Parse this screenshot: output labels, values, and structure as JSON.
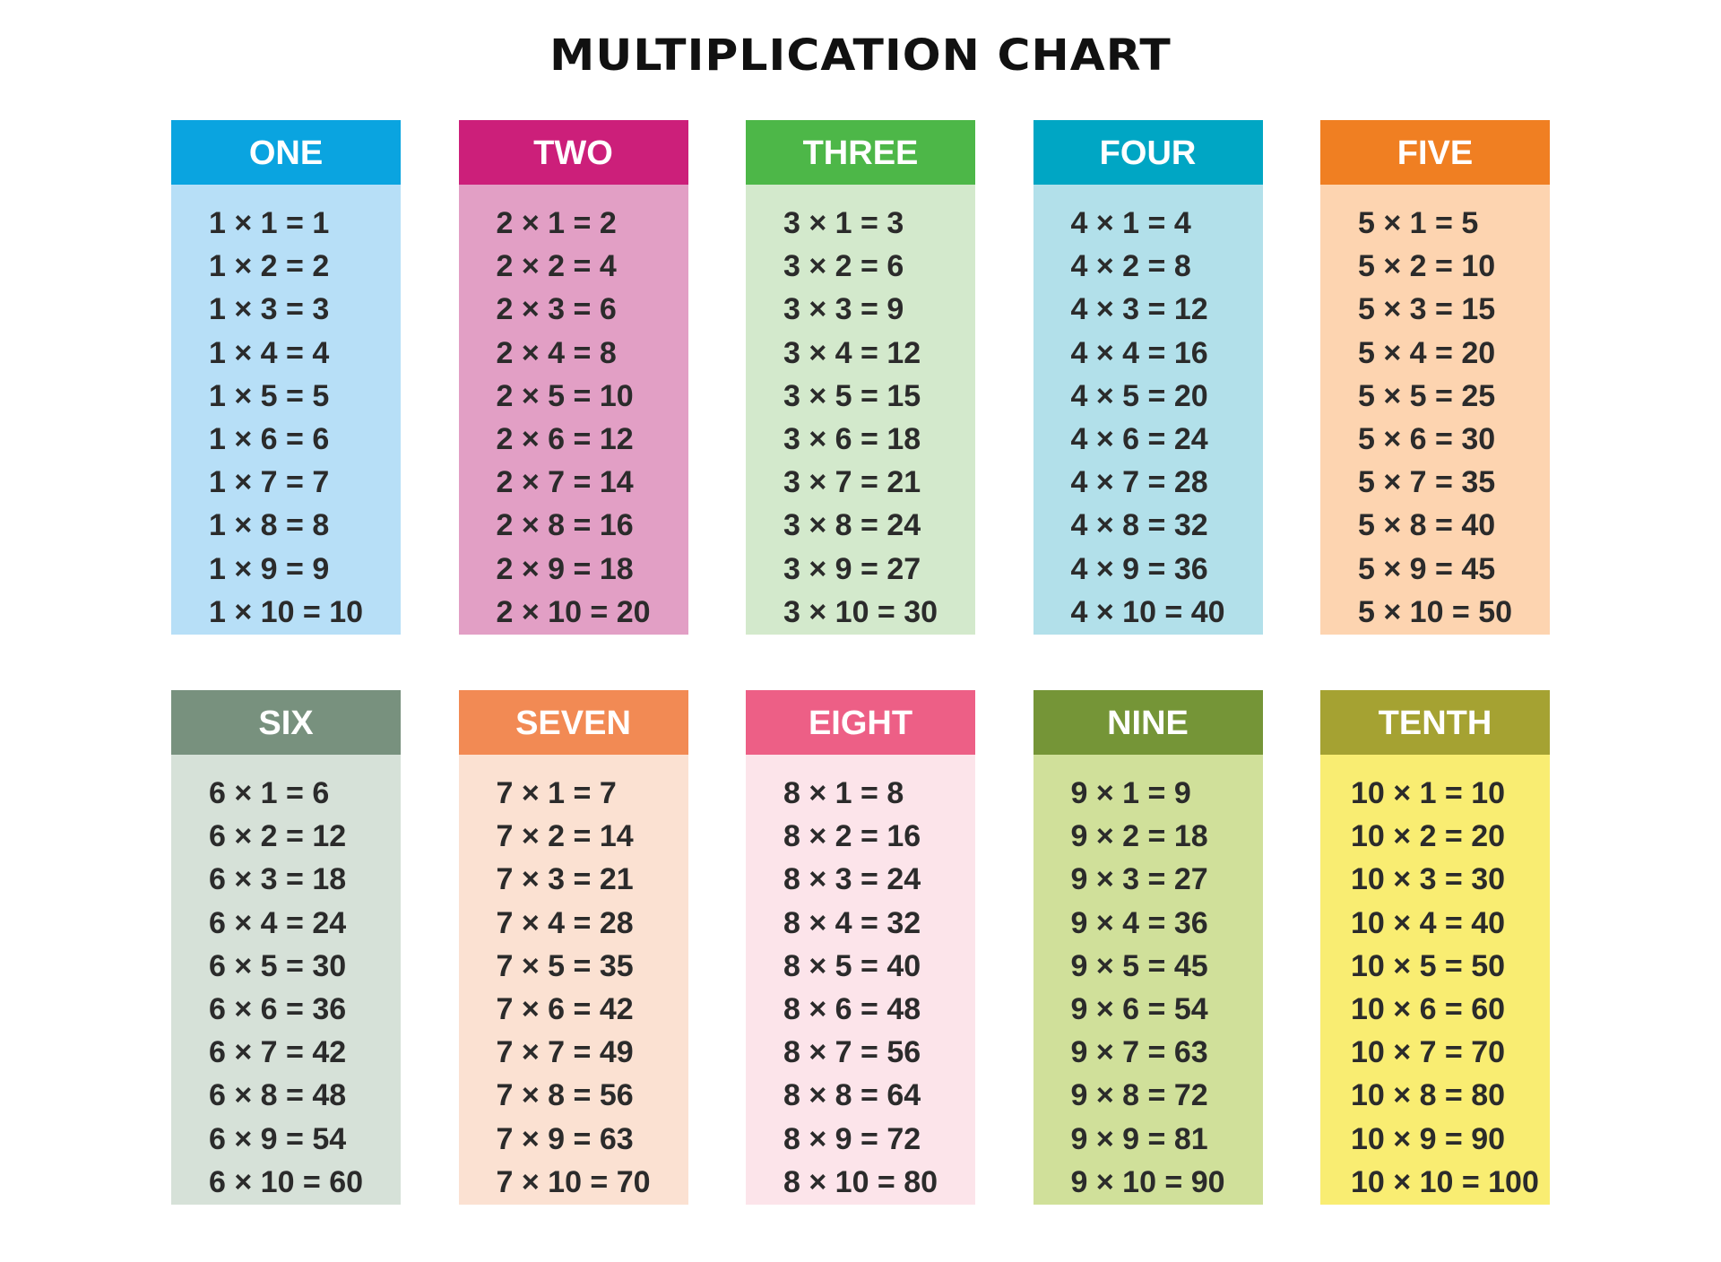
{
  "title": "MULTIPLICATION CHART",
  "tables": [
    {
      "header": "ONE",
      "header_color": "#0aa4e0",
      "body_color": "#b7dff7",
      "rows": [
        "1 × 1 = 1",
        "1 × 2 = 2",
        "1 × 3 = 3",
        "1 × 4 = 4",
        "1 × 5 = 5",
        "1 × 6 = 6",
        "1 × 7 = 7",
        "1 × 8 = 8",
        "1 × 9 = 9",
        "1 × 10 = 10"
      ]
    },
    {
      "header": "TWO",
      "header_color": "#cc1f7a",
      "body_color": "#e29fc5",
      "rows": [
        "2 × 1 = 2",
        "2 × 2 = 4",
        "2 × 3 = 6",
        "2 × 4 = 8",
        "2 × 5 = 10",
        "2 × 6 = 12",
        "2 × 7 = 14",
        "2 × 8 = 16",
        "2 × 9 = 18",
        "2 × 10 = 20"
      ]
    },
    {
      "header": "THREE",
      "header_color": "#4db748",
      "body_color": "#d3e9cc",
      "rows": [
        "3 × 1 = 3",
        "3 × 2 = 6",
        "3 × 3 = 9",
        "3 × 4 = 12",
        "3 × 5 = 15",
        "3 × 6 = 18",
        "3 × 7 = 21",
        "3 × 8 = 24",
        "3 × 9 = 27",
        "3 × 10 = 30"
      ]
    },
    {
      "header": "FOUR",
      "header_color": "#00a6c4",
      "body_color": "#b2e0ea",
      "rows": [
        "4 × 1 = 4",
        "4 × 2 = 8",
        "4 × 3 = 12",
        "4 × 4 = 16",
        "4 × 5 = 20",
        "4 × 6 = 24",
        "4 × 7 = 28",
        "4 × 8 = 32",
        "4 × 9 = 36",
        "4 × 10 = 40"
      ]
    },
    {
      "header": "FIVE",
      "header_color": "#f07f22",
      "body_color": "#fdd4b0",
      "rows": [
        "5 × 1 = 5",
        "5 × 2 = 10",
        "5 × 3 = 15",
        "5 × 4 = 20",
        "5 × 5 = 25",
        "5 × 6 = 30",
        "5 × 7 = 35",
        "5 × 8 = 40",
        "5 × 9 = 45",
        "5 × 10 = 50"
      ]
    },
    {
      "header": "SIX",
      "header_color": "#78917e",
      "body_color": "#d6e1d8",
      "rows": [
        "6 × 1 = 6",
        "6 × 2 = 12",
        "6 × 3 = 18",
        "6 × 4 = 24",
        "6 × 5 = 30",
        "6 × 6 = 36",
        "6 × 7 = 42",
        "6 × 8 = 48",
        "6 × 9 = 54",
        "6 × 10 = 60"
      ]
    },
    {
      "header": "SEVEN",
      "header_color": "#f28a54",
      "body_color": "#fbe1d2",
      "rows": [
        "7 × 1 = 7",
        "7 × 2 = 14",
        "7 × 3 = 21",
        "7 × 4 = 28",
        "7 × 5 = 35",
        "7 × 6 = 42",
        "7 × 7 = 49",
        "7 × 8 = 56",
        "7 × 9 = 63",
        "7 × 10 = 70"
      ]
    },
    {
      "header": "EIGHT",
      "header_color": "#ed5f86",
      "body_color": "#fce4ea",
      "rows": [
        "8 × 1 = 8",
        "8 × 2 = 16",
        "8 × 3 = 24",
        "8 × 4 = 32",
        "8 × 5 = 40",
        "8 × 6 = 48",
        "8 × 7 = 56",
        "8 × 8 = 64",
        "8 × 9 = 72",
        "8 × 10 = 80"
      ]
    },
    {
      "header": "NINE",
      "header_color": "#759537",
      "body_color": "#d0e09a",
      "rows": [
        "9 × 1 = 9",
        "9 × 2 = 18",
        "9 × 3 = 27",
        "9 × 4 = 36",
        "9 × 5 = 45",
        "9 × 6 = 54",
        "9 × 7 = 63",
        "9 × 8 = 72",
        "9 × 9 = 81",
        "9 × 10 = 90"
      ]
    },
    {
      "header": "TENTH",
      "header_color": "#a5a232",
      "body_color": "#f9ed72",
      "rows": [
        "10 × 1 = 10",
        "10 × 2 = 20",
        "10 × 3 = 30",
        "10 × 4 = 40",
        "10 × 5 = 50",
        "10 × 6 = 60",
        "10 × 7 = 70",
        "10 × 8 = 80",
        "10 × 9 = 90",
        "10 × 10 = 100"
      ]
    }
  ]
}
